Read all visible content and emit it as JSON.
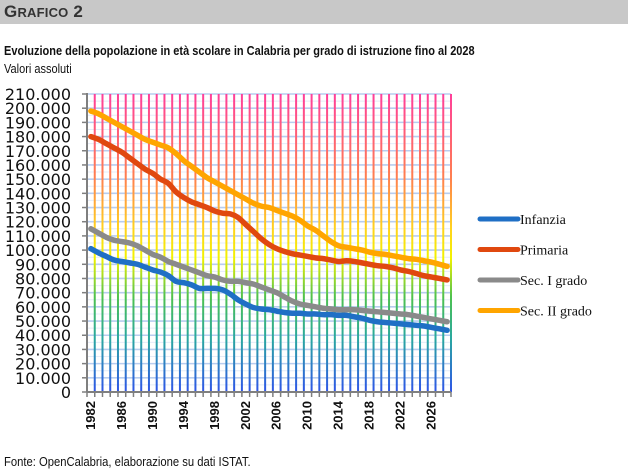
{
  "header": {
    "title_first": "G",
    "title_rest": "RAFICO",
    "title_number": " 2"
  },
  "chart_title": "Evoluzione della popolazione in età scolare in Calabria per grado di istruzione fino al 2028",
  "chart_subtitle": "Valori assoluti",
  "footer": "Fonte: OpenCalabria, elaborazione su dati ISTAT.",
  "colors": {
    "infanzia": "#1f6fc5",
    "primaria": "#e0480f",
    "sec1": "#8a8a8a",
    "sec2": "#ffa500",
    "h_grid": "#b8cdef",
    "axis": "#7f7f7f"
  },
  "chart_data": {
    "type": "line",
    "title": "Evoluzione della popolazione in età scolare in Calabria per grado di istruzione fino al 2028",
    "subtitle": "Valori assoluti",
    "xlabel": "",
    "ylabel": "",
    "ylim": [
      0,
      210000
    ],
    "y_ticks": [
      0,
      10000,
      20000,
      30000,
      40000,
      50000,
      60000,
      70000,
      80000,
      90000,
      100000,
      110000,
      120000,
      130000,
      140000,
      150000,
      160000,
      170000,
      180000,
      190000,
      200000,
      210000
    ],
    "y_tick_labels": [
      "0",
      "10.000",
      "20.000",
      "30.000",
      "40.000",
      "50.000",
      "60.000",
      "70.000",
      "80.000",
      "90.000",
      "100.000",
      "110.000",
      "120.000",
      "130.000",
      "140.000",
      "150.000",
      "160.000",
      "170.000",
      "180.000",
      "190.000",
      "200.000",
      "210.000"
    ],
    "x": [
      1982,
      1983,
      1984,
      1985,
      1986,
      1987,
      1988,
      1989,
      1990,
      1991,
      1992,
      1993,
      1994,
      1995,
      1996,
      1997,
      1998,
      1999,
      2000,
      2001,
      2002,
      2003,
      2004,
      2005,
      2006,
      2007,
      2008,
      2009,
      2010,
      2011,
      2012,
      2013,
      2014,
      2015,
      2016,
      2017,
      2018,
      2019,
      2020,
      2021,
      2022,
      2023,
      2024,
      2025,
      2026,
      2027,
      2028
    ],
    "x_tick_labels": [
      "1982",
      "1986",
      "1990",
      "1994",
      "1998",
      "2002",
      "2006",
      "2010",
      "2014",
      "2018",
      "2022",
      "2026"
    ],
    "grid": true,
    "legend_position": "right",
    "series": [
      {
        "name": "Infanzia",
        "key": "infanzia",
        "values": [
          101000,
          98000,
          95500,
          93000,
          92000,
          91000,
          90000,
          88000,
          86000,
          84500,
          82000,
          78000,
          77000,
          75500,
          73000,
          73000,
          73000,
          72000,
          69000,
          65000,
          62000,
          59500,
          58500,
          58000,
          57000,
          56000,
          55500,
          55500,
          55000,
          55000,
          54500,
          54500,
          54000,
          54000,
          53000,
          52000,
          50500,
          49500,
          49000,
          48500,
          48000,
          47500,
          47000,
          46500,
          45500,
          44500,
          43500
        ]
      },
      {
        "name": "Primaria",
        "key": "primaria",
        "values": [
          180000,
          178000,
          175000,
          172000,
          169000,
          165000,
          161000,
          157000,
          154000,
          150000,
          147000,
          141000,
          137000,
          134000,
          132000,
          130000,
          127500,
          126000,
          125500,
          123000,
          118000,
          113000,
          108000,
          104000,
          101000,
          99000,
          97500,
          96500,
          95500,
          94500,
          94000,
          93000,
          92000,
          92500,
          92000,
          91000,
          90000,
          89000,
          88500,
          87500,
          86000,
          85000,
          83500,
          82000,
          81000,
          80000,
          79000
        ]
      },
      {
        "name": "Sec. I grado",
        "key": "sec1",
        "values": [
          115000,
          112000,
          109000,
          107000,
          106000,
          105000,
          103000,
          100000,
          97000,
          95000,
          92000,
          90000,
          88000,
          86000,
          84000,
          82000,
          81000,
          79000,
          78000,
          78000,
          77000,
          76000,
          74000,
          72000,
          70000,
          67000,
          64000,
          62000,
          61000,
          60000,
          59000,
          58500,
          58000,
          58000,
          58000,
          57500,
          57000,
          56500,
          56000,
          55500,
          55000,
          54500,
          53500,
          52500,
          51500,
          50500,
          49500
        ]
      },
      {
        "name": "Sec. II grado",
        "key": "sec2",
        "values": [
          198000,
          196000,
          193000,
          190000,
          187000,
          184000,
          181000,
          178000,
          176000,
          174000,
          172000,
          168000,
          163000,
          159000,
          155000,
          151000,
          148000,
          145000,
          142000,
          139000,
          136000,
          133000,
          131000,
          130000,
          128000,
          126000,
          124000,
          121000,
          117000,
          114000,
          110000,
          106000,
          103000,
          102000,
          101000,
          100000,
          98500,
          97500,
          97000,
          96000,
          95000,
          94000,
          93500,
          92500,
          91500,
          90000,
          88500
        ]
      }
    ]
  }
}
